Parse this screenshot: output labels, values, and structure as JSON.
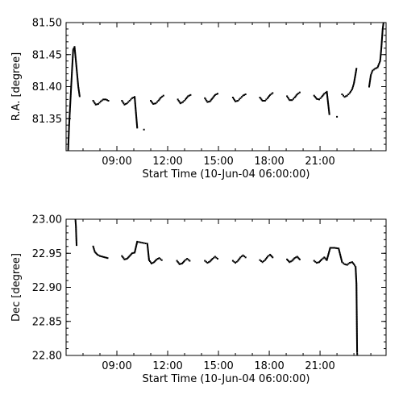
{
  "chart_data": [
    {
      "type": "scatter",
      "xlabel": "Start Time (10-Jun-04 06:00:00)",
      "ylabel": "R.A. [degree]",
      "xlim": [
        6.0,
        24.9
      ],
      "ylim": [
        81.3,
        81.5
      ],
      "xticks": [
        {
          "value": 9,
          "label": "09:00"
        },
        {
          "value": 12,
          "label": "12:00"
        },
        {
          "value": 15,
          "label": "15:00"
        },
        {
          "value": 18,
          "label": "18:00"
        },
        {
          "value": 21,
          "label": "21:00"
        }
      ],
      "yticks": [
        {
          "value": 81.35,
          "label": "81.35"
        },
        {
          "value": 81.4,
          "label": "81.40"
        },
        {
          "value": 81.45,
          "label": "81.45"
        },
        {
          "value": 81.5,
          "label": "81.50"
        }
      ],
      "series": [
        {
          "points": [
            [
              6.12,
              81.3
            ],
            [
              6.15,
              81.32
            ],
            [
              6.18,
              81.34
            ],
            [
              6.22,
              81.36
            ],
            [
              6.26,
              81.38
            ],
            [
              6.3,
              81.4
            ],
            [
              6.36,
              81.43
            ],
            [
              6.42,
              81.458
            ],
            [
              6.5,
              81.462
            ],
            [
              6.58,
              81.44
            ],
            [
              6.65,
              81.42
            ],
            [
              6.72,
              81.4
            ],
            [
              6.8,
              81.385
            ],
            [
              7.6,
              81.378
            ],
            [
              7.75,
              81.372
            ],
            [
              7.9,
              81.373
            ],
            [
              8.05,
              81.377
            ],
            [
              8.2,
              81.38
            ],
            [
              8.35,
              81.38
            ],
            [
              8.5,
              81.378
            ],
            [
              9.3,
              81.378
            ],
            [
              9.45,
              81.372
            ],
            [
              9.6,
              81.374
            ],
            [
              9.75,
              81.378
            ],
            [
              9.9,
              81.382
            ],
            [
              10.05,
              81.384
            ],
            [
              10.2,
              81.336
            ],
            [
              10.6,
              81.333
            ],
            [
              11.0,
              81.378
            ],
            [
              11.15,
              81.373
            ],
            [
              11.3,
              81.374
            ],
            [
              11.45,
              81.378
            ],
            [
              11.6,
              81.383
            ],
            [
              11.75,
              81.386
            ],
            [
              12.6,
              81.38
            ],
            [
              12.75,
              81.374
            ],
            [
              12.9,
              81.376
            ],
            [
              13.05,
              81.38
            ],
            [
              13.2,
              81.385
            ],
            [
              13.35,
              81.387
            ],
            [
              14.2,
              81.382
            ],
            [
              14.35,
              81.376
            ],
            [
              14.5,
              81.377
            ],
            [
              14.65,
              81.382
            ],
            [
              14.8,
              81.387
            ],
            [
              14.95,
              81.389
            ],
            [
              15.85,
              81.383
            ],
            [
              16.0,
              81.377
            ],
            [
              16.15,
              81.378
            ],
            [
              16.3,
              81.382
            ],
            [
              16.45,
              81.386
            ],
            [
              16.6,
              81.388
            ],
            [
              17.45,
              81.383
            ],
            [
              17.6,
              81.378
            ],
            [
              17.75,
              81.378
            ],
            [
              17.9,
              81.382
            ],
            [
              18.05,
              81.387
            ],
            [
              18.2,
              81.39
            ],
            [
              19.05,
              81.385
            ],
            [
              19.2,
              81.379
            ],
            [
              19.35,
              81.379
            ],
            [
              19.5,
              81.383
            ],
            [
              19.65,
              81.388
            ],
            [
              19.8,
              81.391
            ],
            [
              20.65,
              81.386
            ],
            [
              20.8,
              81.381
            ],
            [
              20.95,
              81.38
            ],
            [
              21.1,
              81.384
            ],
            [
              21.25,
              81.389
            ],
            [
              21.4,
              81.392
            ],
            [
              21.55,
              81.357
            ],
            [
              22.0,
              81.353
            ],
            [
              22.3,
              81.388
            ],
            [
              22.45,
              81.384
            ],
            [
              22.6,
              81.386
            ],
            [
              22.75,
              81.39
            ],
            [
              22.9,
              81.396
            ],
            [
              23.0,
              81.405
            ],
            [
              23.1,
              81.42
            ],
            [
              23.15,
              81.428
            ],
            [
              23.9,
              81.4
            ],
            [
              24.0,
              81.418
            ],
            [
              24.1,
              81.425
            ],
            [
              24.25,
              81.428
            ],
            [
              24.4,
              81.43
            ],
            [
              24.55,
              81.44
            ],
            [
              24.62,
              81.46
            ],
            [
              24.7,
              81.49
            ],
            [
              24.75,
              81.5
            ]
          ]
        }
      ]
    },
    {
      "type": "scatter",
      "xlabel": "Start Time (10-Jun-04 06:00:00)",
      "ylabel": "Dec [degree]",
      "xlim": [
        6.0,
        24.9
      ],
      "ylim": [
        22.8,
        23.0
      ],
      "xticks": [
        {
          "value": 9,
          "label": "09:00"
        },
        {
          "value": 12,
          "label": "12:00"
        },
        {
          "value": 15,
          "label": "15:00"
        },
        {
          "value": 18,
          "label": "18:00"
        },
        {
          "value": 21,
          "label": "21:00"
        }
      ],
      "yticks": [
        {
          "value": 22.8,
          "label": "22.80"
        },
        {
          "value": 22.85,
          "label": "22.85"
        },
        {
          "value": 22.9,
          "label": "22.90"
        },
        {
          "value": 22.95,
          "label": "22.95"
        },
        {
          "value": 23.0,
          "label": "23.00"
        }
      ],
      "series": [
        {
          "points": [
            [
              6.55,
              23.0
            ],
            [
              6.58,
              22.99
            ],
            [
              6.6,
              22.975
            ],
            [
              6.62,
              22.962
            ],
            [
              7.6,
              22.96
            ],
            [
              7.7,
              22.952
            ],
            [
              7.85,
              22.948
            ],
            [
              8.0,
              22.946
            ],
            [
              8.15,
              22.945
            ],
            [
              8.3,
              22.944
            ],
            [
              8.45,
              22.943
            ],
            [
              9.3,
              22.946
            ],
            [
              9.45,
              22.941
            ],
            [
              9.6,
              22.942
            ],
            [
              9.75,
              22.946
            ],
            [
              9.9,
              22.95
            ],
            [
              10.05,
              22.951
            ],
            [
              10.2,
              22.967
            ],
            [
              10.4,
              22.966
            ],
            [
              10.6,
              22.965
            ],
            [
              10.8,
              22.964
            ],
            [
              10.9,
              22.94
            ],
            [
              11.05,
              22.935
            ],
            [
              11.2,
              22.937
            ],
            [
              11.35,
              22.941
            ],
            [
              11.5,
              22.943
            ],
            [
              11.65,
              22.94
            ],
            [
              12.55,
              22.939
            ],
            [
              12.7,
              22.934
            ],
            [
              12.85,
              22.935
            ],
            [
              13.0,
              22.939
            ],
            [
              13.15,
              22.942
            ],
            [
              13.3,
              22.939
            ],
            [
              14.2,
              22.939
            ],
            [
              14.35,
              22.936
            ],
            [
              14.5,
              22.938
            ],
            [
              14.65,
              22.942
            ],
            [
              14.8,
              22.945
            ],
            [
              14.95,
              22.942
            ],
            [
              15.85,
              22.939
            ],
            [
              16.0,
              22.936
            ],
            [
              16.15,
              22.939
            ],
            [
              16.3,
              22.944
            ],
            [
              16.45,
              22.947
            ],
            [
              16.6,
              22.944
            ],
            [
              17.45,
              22.94
            ],
            [
              17.6,
              22.937
            ],
            [
              17.75,
              22.94
            ],
            [
              17.9,
              22.945
            ],
            [
              18.05,
              22.948
            ],
            [
              18.2,
              22.944
            ],
            [
              19.05,
              22.941
            ],
            [
              19.2,
              22.937
            ],
            [
              19.35,
              22.939
            ],
            [
              19.5,
              22.943
            ],
            [
              19.65,
              22.945
            ],
            [
              19.8,
              22.941
            ],
            [
              20.65,
              22.939
            ],
            [
              20.8,
              22.936
            ],
            [
              20.95,
              22.937
            ],
            [
              21.1,
              22.941
            ],
            [
              21.25,
              22.944
            ],
            [
              21.4,
              22.94
            ],
            [
              21.6,
              22.958
            ],
            [
              21.85,
              22.958
            ],
            [
              22.1,
              22.957
            ],
            [
              22.3,
              22.937
            ],
            [
              22.45,
              22.934
            ],
            [
              22.6,
              22.933
            ],
            [
              22.75,
              22.936
            ],
            [
              22.9,
              22.937
            ],
            [
              23.0,
              22.934
            ],
            [
              23.1,
              22.93
            ],
            [
              23.15,
              22.905
            ],
            [
              23.16,
              22.88
            ],
            [
              23.17,
              22.855
            ],
            [
              23.18,
              22.83
            ],
            [
              23.19,
              22.805
            ],
            [
              23.2,
              22.8
            ]
          ]
        }
      ]
    }
  ]
}
